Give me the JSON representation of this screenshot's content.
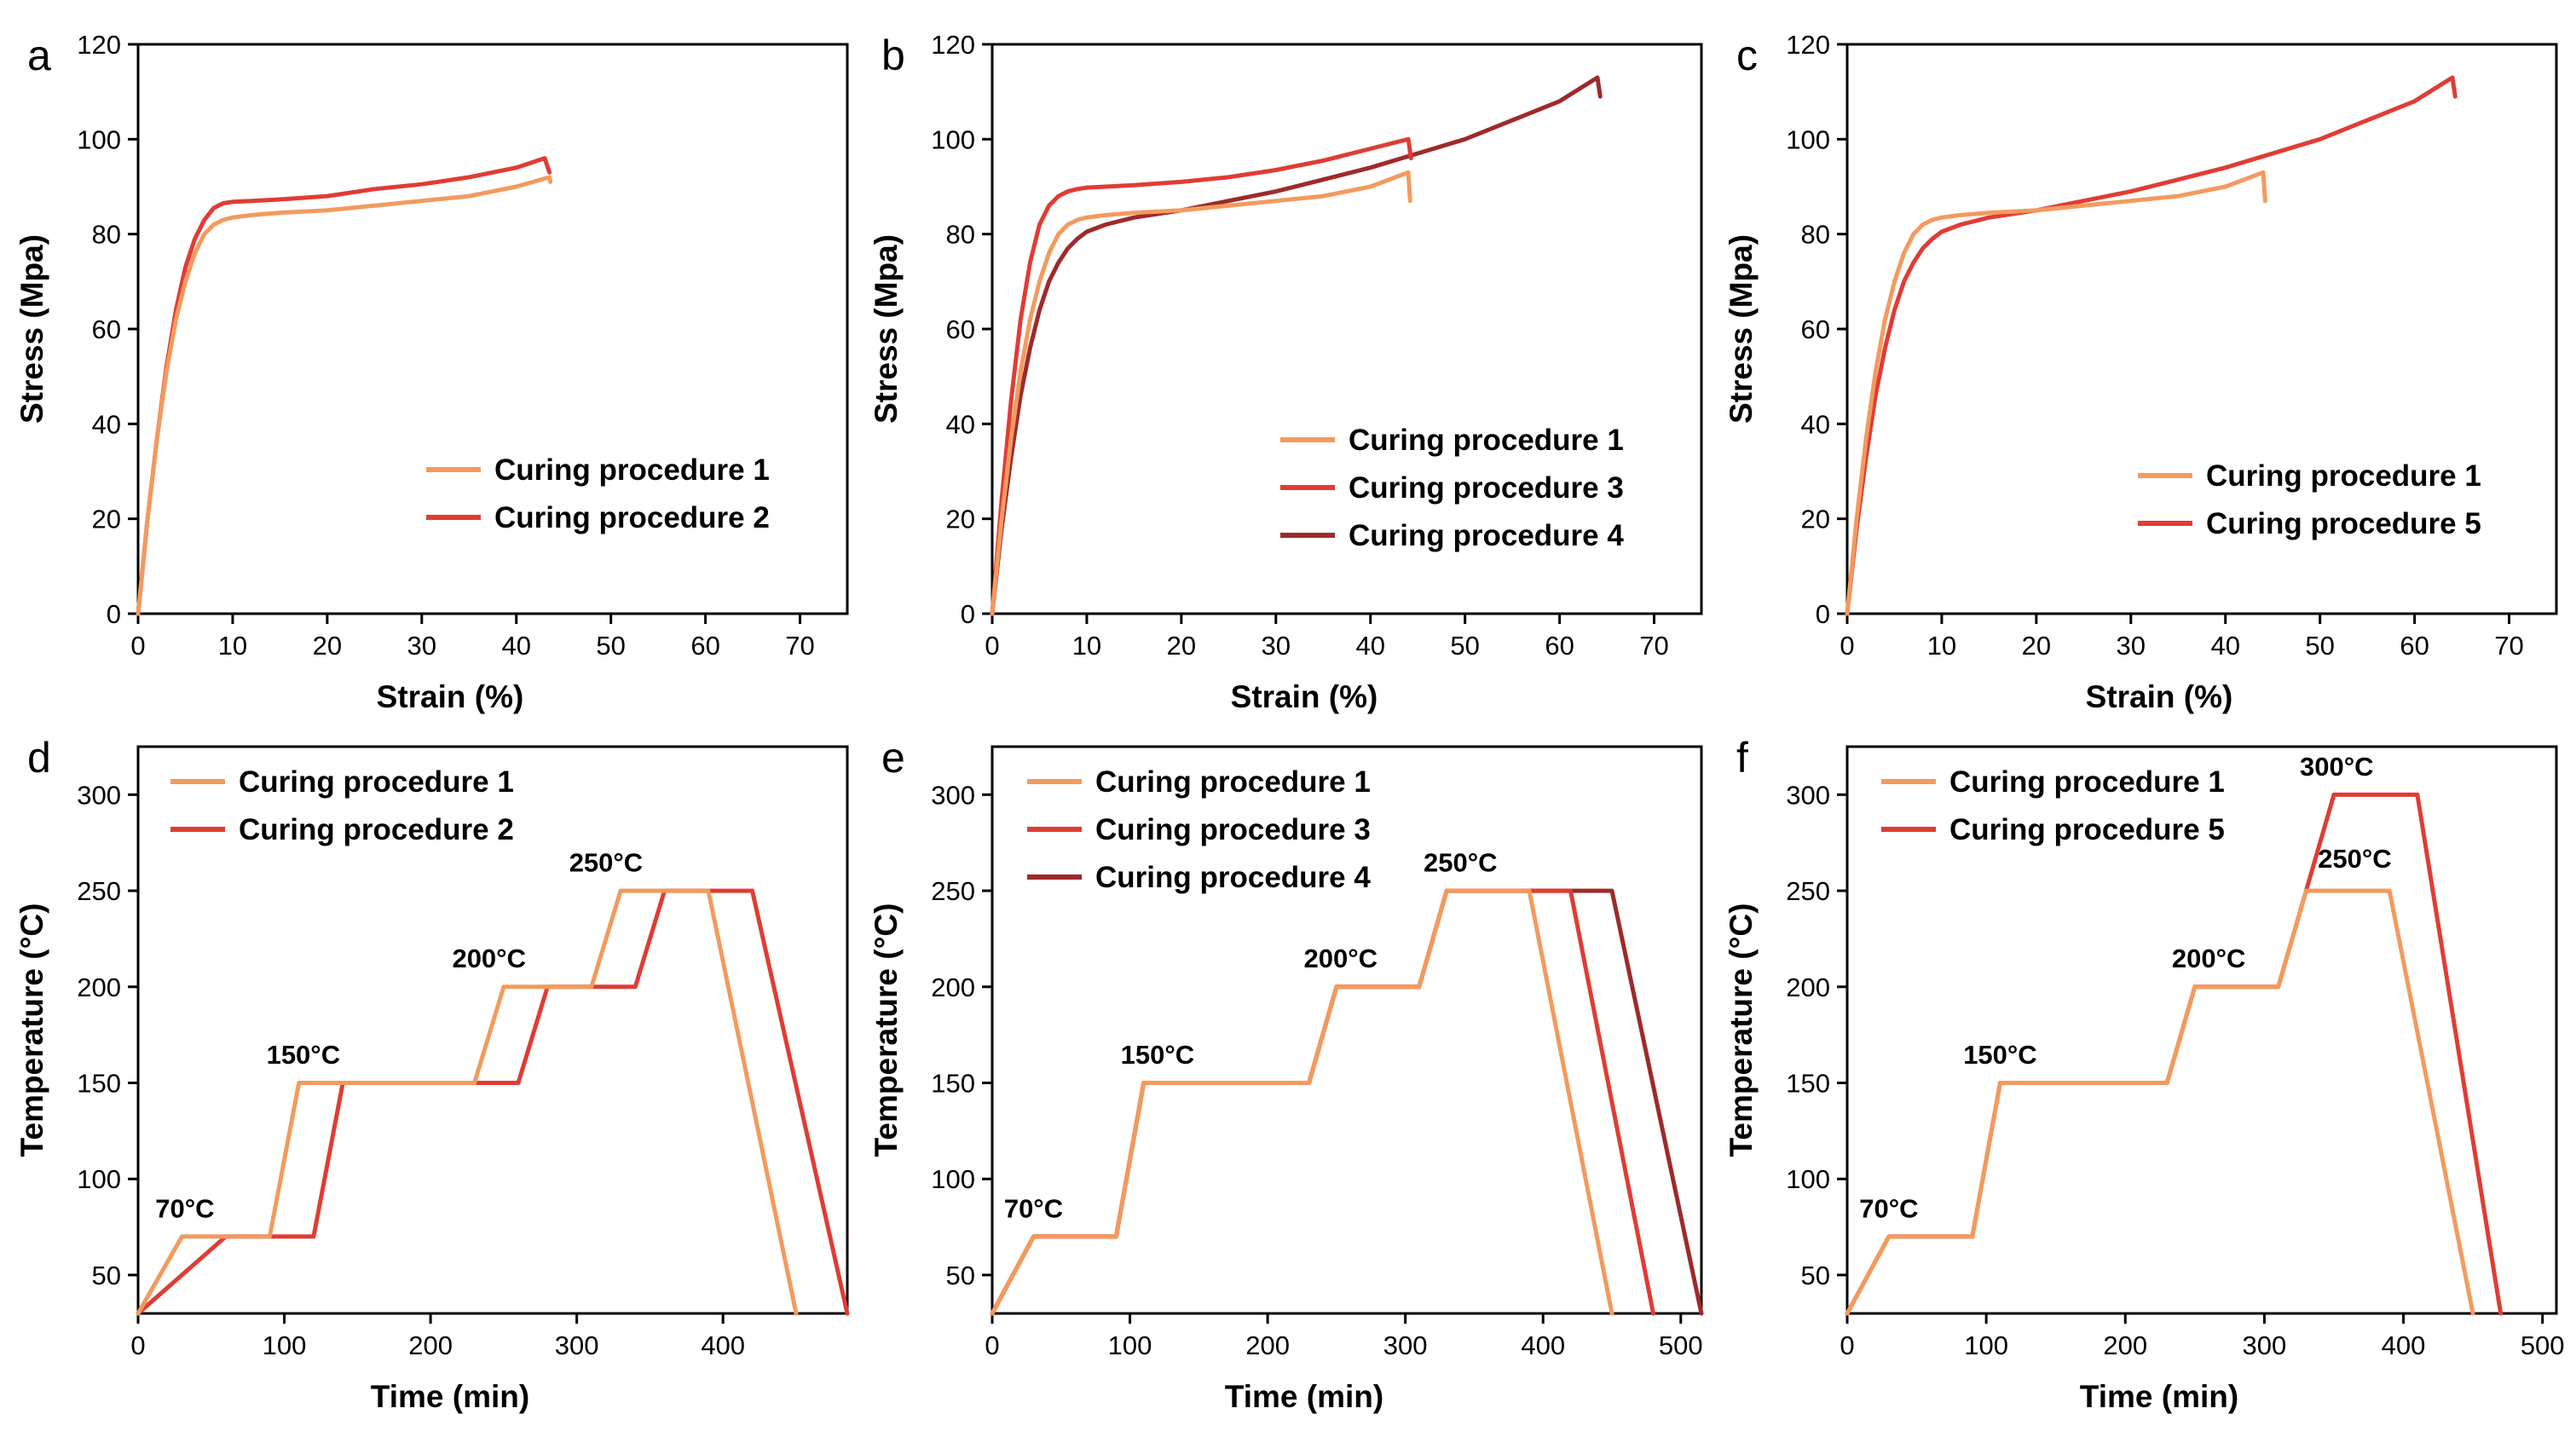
{
  "colors": {
    "p1": "#F39A5E",
    "p2": "#E03C35",
    "p3": "#E03C35",
    "p4": "#9E2A2B",
    "p5": "#E03C35"
  },
  "chart_data": [
    {
      "id": "a",
      "letter": "a",
      "type": "line",
      "xlabel": "Strain (%)",
      "ylabel": "Stress (Mpa)",
      "xlim": [
        0,
        75
      ],
      "ylim": [
        0,
        120
      ],
      "xticks": [
        0,
        10,
        20,
        30,
        40,
        50,
        60,
        70
      ],
      "yticks": [
        0,
        20,
        40,
        60,
        80,
        100,
        120
      ],
      "tick_labels_x": [
        "0",
        "10",
        "20",
        "30",
        "40",
        "50",
        "60",
        "70"
      ],
      "tick_labels_y": [
        "0",
        "20",
        "40",
        "60",
        "80",
        "100",
        "120"
      ],
      "legend_position": "lower-right",
      "series": [
        {
          "name": "Curing procedure 1",
          "color": "#F39A5E",
          "x": [
            0,
            1,
            2,
            3,
            4,
            5,
            6,
            7,
            8,
            9,
            10,
            12,
            15,
            20,
            25,
            30,
            35,
            40,
            43.5,
            43.6
          ],
          "y": [
            0,
            20,
            37,
            51,
            62,
            70,
            76,
            80,
            82,
            83,
            83.5,
            84,
            84.5,
            85,
            86,
            87,
            88,
            90,
            92,
            91
          ]
        },
        {
          "name": "Curing procedure 2",
          "color": "#E03C35",
          "x": [
            0,
            1,
            2,
            3,
            4,
            5,
            6,
            7,
            8,
            9,
            10,
            12,
            15,
            20,
            25,
            30,
            35,
            40,
            43,
            43.5
          ],
          "y": [
            0,
            20,
            37,
            52,
            64,
            73,
            79,
            83,
            85.5,
            86.5,
            86.8,
            87,
            87.3,
            88,
            89.5,
            90.5,
            92,
            94,
            96,
            93
          ]
        }
      ]
    },
    {
      "id": "b",
      "letter": "b",
      "type": "line",
      "xlabel": "Strain (%)",
      "ylabel": "Stress (Mpa)",
      "xlim": [
        0,
        75
      ],
      "ylim": [
        0,
        120
      ],
      "xticks": [
        0,
        10,
        20,
        30,
        40,
        50,
        60,
        70
      ],
      "yticks": [
        0,
        20,
        40,
        60,
        80,
        100,
        120
      ],
      "tick_labels_x": [
        "0",
        "10",
        "20",
        "30",
        "40",
        "50",
        "60",
        "70"
      ],
      "tick_labels_y": [
        "0",
        "20",
        "40",
        "60",
        "80",
        "100",
        "120"
      ],
      "legend_position": "lower-right",
      "series": [
        {
          "name": "Curing procedure 1",
          "color": "#F39A5E",
          "x": [
            0,
            1,
            2,
            3,
            4,
            5,
            6,
            7,
            8,
            9,
            10,
            12,
            15,
            20,
            25,
            30,
            35,
            40,
            44,
            44.2
          ],
          "y": [
            0,
            20,
            37,
            51,
            62,
            70,
            76,
            80,
            82,
            83,
            83.5,
            84,
            84.5,
            85,
            86,
            87,
            88,
            90,
            93,
            87
          ]
        },
        {
          "name": "Curing procedure 3",
          "color": "#E03C35",
          "x": [
            0,
            1,
            2,
            3,
            4,
            5,
            6,
            7,
            8,
            9,
            10,
            12,
            15,
            20,
            25,
            30,
            35,
            40,
            44,
            44.3
          ],
          "y": [
            0,
            24,
            45,
            62,
            74,
            82,
            86,
            88,
            89,
            89.5,
            89.8,
            90,
            90.3,
            91,
            92,
            93.5,
            95.5,
            98,
            100,
            96
          ]
        },
        {
          "name": "Curing procedure 4",
          "color": "#9E2A2B",
          "x": [
            0,
            1,
            2,
            3,
            4,
            5,
            6,
            7,
            8,
            9,
            10,
            12,
            15,
            20,
            25,
            30,
            35,
            40,
            45,
            50,
            55,
            60,
            64,
            64.3
          ],
          "y": [
            0,
            18,
            33,
            46,
            56,
            64,
            70,
            74,
            77,
            79,
            80.5,
            82,
            83.5,
            85,
            87,
            89,
            91.5,
            94,
            97,
            100,
            104,
            108,
            113,
            109
          ]
        }
      ]
    },
    {
      "id": "c",
      "letter": "c",
      "type": "line",
      "xlabel": "Strain (%)",
      "ylabel": "Stress (Mpa)",
      "xlim": [
        0,
        75
      ],
      "ylim": [
        0,
        120
      ],
      "xticks": [
        0,
        10,
        20,
        30,
        40,
        50,
        60,
        70
      ],
      "yticks": [
        0,
        20,
        40,
        60,
        80,
        100,
        120
      ],
      "tick_labels_x": [
        "0",
        "10",
        "20",
        "30",
        "40",
        "50",
        "60",
        "70"
      ],
      "tick_labels_y": [
        "0",
        "20",
        "40",
        "60",
        "80",
        "100",
        "120"
      ],
      "legend_position": "lower-right",
      "series": [
        {
          "name": "Curing procedure 1",
          "color": "#F39A5E",
          "x": [
            0,
            1,
            2,
            3,
            4,
            5,
            6,
            7,
            8,
            9,
            10,
            12,
            15,
            20,
            25,
            30,
            35,
            40,
            44,
            44.2
          ],
          "y": [
            0,
            20,
            37,
            51,
            62,
            70,
            76,
            80,
            82,
            83,
            83.5,
            84,
            84.5,
            85,
            86,
            87,
            88,
            90,
            93,
            87
          ]
        },
        {
          "name": "Curing procedure 5",
          "color": "#E03C35",
          "x": [
            0,
            1,
            2,
            3,
            4,
            5,
            6,
            7,
            8,
            9,
            10,
            12,
            15,
            20,
            25,
            30,
            35,
            40,
            45,
            50,
            55,
            60,
            64,
            64.3
          ],
          "y": [
            0,
            18,
            33,
            46,
            56,
            64,
            70,
            74,
            77,
            79,
            80.5,
            82,
            83.5,
            85,
            87,
            89,
            91.5,
            94,
            97,
            100,
            104,
            108,
            113,
            109
          ]
        }
      ]
    },
    {
      "id": "d",
      "letter": "d",
      "type": "line",
      "xlabel": "Time (min)",
      "ylabel": "Temperature (°C)",
      "xlim": [
        0,
        485
      ],
      "ylim": [
        30,
        325
      ],
      "xticks": [
        0,
        100,
        200,
        300,
        400
      ],
      "yticks": [
        50,
        100,
        150,
        200,
        250,
        300
      ],
      "tick_labels_x": [
        "0",
        "100",
        "200",
        "300",
        "400"
      ],
      "tick_labels_y": [
        "50",
        "100",
        "150",
        "200",
        "250",
        "300"
      ],
      "legend_position": "upper-left",
      "annotations": [
        {
          "text": "70°C",
          "x": 32,
          "y": 80
        },
        {
          "text": "150°C",
          "x": 113,
          "y": 160
        },
        {
          "text": "200°C",
          "x": 240,
          "y": 210
        },
        {
          "text": "250°C",
          "x": 320,
          "y": 260
        }
      ],
      "series": [
        {
          "name": "Curing procedure 1",
          "color": "#F39A5E",
          "x": [
            0,
            30,
            90,
            110,
            230,
            250,
            310,
            330,
            390,
            450
          ],
          "y": [
            30,
            70,
            70,
            150,
            150,
            200,
            200,
            250,
            250,
            30
          ]
        },
        {
          "name": "Curing procedure 2",
          "color": "#E03C35",
          "x": [
            0,
            60,
            120,
            140,
            260,
            280,
            340,
            360,
            420,
            485
          ],
          "y": [
            30,
            70,
            70,
            150,
            150,
            200,
            200,
            250,
            250,
            30
          ]
        }
      ]
    },
    {
      "id": "e",
      "letter": "e",
      "type": "line",
      "xlabel": "Time (min)",
      "ylabel": "Temperature (°C)",
      "xlim": [
        0,
        515
      ],
      "ylim": [
        30,
        325
      ],
      "xticks": [
        0,
        100,
        200,
        300,
        400,
        500
      ],
      "yticks": [
        50,
        100,
        150,
        200,
        250,
        300
      ],
      "tick_labels_x": [
        "0",
        "100",
        "200",
        "300",
        "400",
        "500"
      ],
      "tick_labels_y": [
        "50",
        "100",
        "150",
        "200",
        "250",
        "300"
      ],
      "legend_position": "upper-left",
      "annotations": [
        {
          "text": "70°C",
          "x": 30,
          "y": 80
        },
        {
          "text": "150°C",
          "x": 120,
          "y": 160
        },
        {
          "text": "200°C",
          "x": 253,
          "y": 210
        },
        {
          "text": "250°C",
          "x": 340,
          "y": 260
        }
      ],
      "series": [
        {
          "name": "Curing procedure 1",
          "color": "#F39A5E",
          "x": [
            0,
            30,
            90,
            110,
            230,
            250,
            310,
            330,
            390,
            450
          ],
          "y": [
            30,
            70,
            70,
            150,
            150,
            200,
            200,
            250,
            250,
            30
          ]
        },
        {
          "name": "Curing procedure 3",
          "color": "#E03C35",
          "x": [
            0,
            30,
            90,
            110,
            230,
            250,
            310,
            330,
            420,
            480
          ],
          "y": [
            30,
            70,
            70,
            150,
            150,
            200,
            200,
            250,
            250,
            30
          ]
        },
        {
          "name": "Curing procedure 4",
          "color": "#9E2A2B",
          "x": [
            0,
            30,
            90,
            110,
            230,
            250,
            310,
            330,
            450,
            515
          ],
          "y": [
            30,
            70,
            70,
            150,
            150,
            200,
            200,
            250,
            250,
            30
          ]
        }
      ]
    },
    {
      "id": "f",
      "letter": "f",
      "type": "line",
      "xlabel": "Time (min)",
      "ylabel": "Temperature (°C)",
      "xlim": [
        0,
        510
      ],
      "ylim": [
        30,
        325
      ],
      "xticks": [
        0,
        100,
        200,
        300,
        400,
        500
      ],
      "yticks": [
        50,
        100,
        150,
        200,
        250,
        300
      ],
      "tick_labels_x": [
        "0",
        "100",
        "200",
        "300",
        "400",
        "500"
      ],
      "tick_labels_y": [
        "50",
        "100",
        "150",
        "200",
        "250",
        "300"
      ],
      "legend_position": "upper-left",
      "annotations": [
        {
          "text": "70°C",
          "x": 30,
          "y": 80
        },
        {
          "text": "150°C",
          "x": 110,
          "y": 160
        },
        {
          "text": "200°C",
          "x": 260,
          "y": 210
        },
        {
          "text": "250°C",
          "x": 365,
          "y": 262
        },
        {
          "text": "300°C",
          "x": 352,
          "y": 310
        }
      ],
      "series": [
        {
          "name": "Curing procedure 1",
          "color": "#F39A5E",
          "x": [
            0,
            30,
            90,
            110,
            230,
            250,
            310,
            330,
            390,
            450
          ],
          "y": [
            30,
            70,
            70,
            150,
            150,
            200,
            200,
            250,
            250,
            30
          ]
        },
        {
          "name": "Curing procedure 5",
          "color": "#E03C35",
          "x": [
            0,
            30,
            90,
            110,
            230,
            250,
            310,
            330,
            350,
            410,
            470
          ],
          "y": [
            30,
            70,
            70,
            150,
            150,
            200,
            200,
            250,
            300,
            300,
            30
          ]
        }
      ]
    }
  ]
}
